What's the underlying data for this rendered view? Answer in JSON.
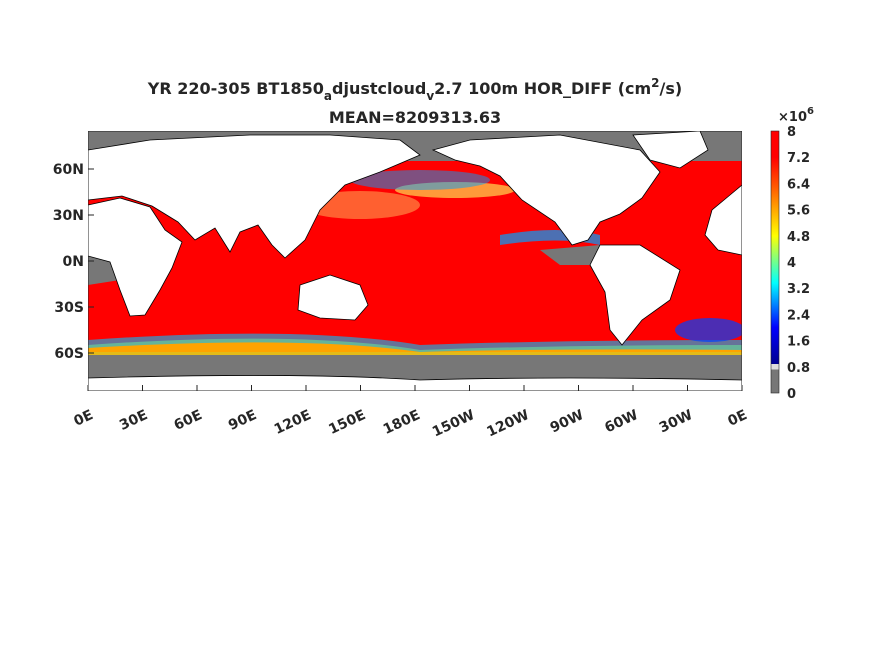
{
  "title": {
    "parts": [
      "YR 220-305 BT1850",
      "a",
      "djustcloud",
      "v",
      "2.7 100m HOR_DIFF (cm",
      "2",
      "/s)"
    ],
    "mean": "MEAN=8209313.63"
  },
  "map": {
    "x_ticks": [
      "0E",
      "30E",
      "60E",
      "90E",
      "120E",
      "150E",
      "180E",
      "150W",
      "120W",
      "90W",
      "60W",
      "30W",
      "0E"
    ],
    "y_ticks": [
      "60N",
      "30N",
      "0N",
      "30S",
      "60S"
    ]
  },
  "colorbar": {
    "exponent_base": "×10",
    "exponent": "6",
    "ticks": [
      "0",
      "0.8",
      "1.6",
      "2.4",
      "3.2",
      "4",
      "4.8",
      "5.6",
      "6.4",
      "7.2",
      "8"
    ]
  }
}
